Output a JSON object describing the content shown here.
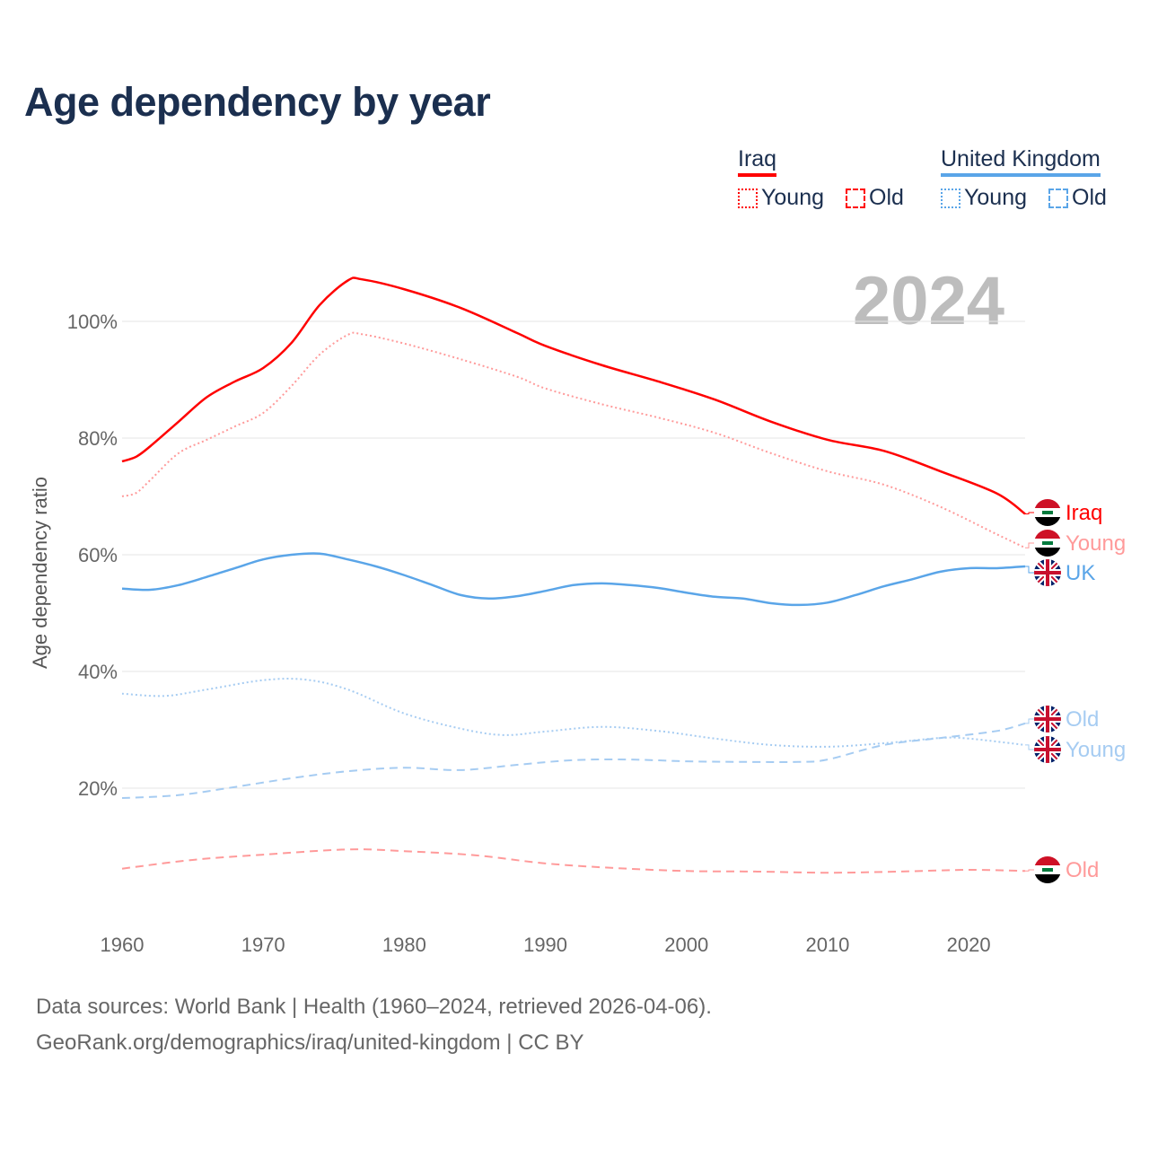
{
  "title": "Age dependency by year",
  "year_label": "2024",
  "legend": {
    "iraq": {
      "name": "Iraq",
      "young": "Young",
      "old": "Old"
    },
    "uk": {
      "name": "United Kingdom",
      "young": "Young",
      "old": "Old"
    }
  },
  "end_labels": {
    "iraq_total": "Iraq",
    "iraq_young": "Young",
    "uk_total": "UK",
    "uk_old": "Old",
    "uk_young": "Young",
    "iraq_old": "Old"
  },
  "source_line1": "Data sources: World Bank | Health (1960–2024, retrieved 2026-04-06).",
  "source_line2": "GeoRank.org/demographics/iraq/united-kingdom | CC BY",
  "colors": {
    "iraq": "#ff0000",
    "iraq_light": "#ff9a9a",
    "uk": "#5aa5e8",
    "uk_light": "#a6ccf2",
    "grid": "#e6e6e6"
  },
  "chart_data": {
    "type": "line",
    "ylabel": "Age dependency ratio",
    "xlabel": "",
    "xlim": [
      1960,
      2024
    ],
    "ylim": [
      0,
      110
    ],
    "x_ticks": [
      1960,
      1970,
      1980,
      1990,
      2000,
      2010,
      2020
    ],
    "x_tick_labels": [
      "1960",
      "1970",
      "1980",
      "1990",
      "2000",
      "2010",
      "2020"
    ],
    "y_ticks": [
      20,
      40,
      60,
      80,
      100
    ],
    "y_tick_labels": [
      "20%",
      "40%",
      "60%",
      "80%",
      "100%"
    ],
    "grid": true,
    "series": [
      {
        "name": "Iraq",
        "key": "iraq_total",
        "style": "solid",
        "color": "#ff0000",
        "x": [
          1960,
          1961,
          1962,
          1964,
          1966,
          1968,
          1970,
          1972,
          1974,
          1976,
          1977,
          1980,
          1984,
          1988,
          1990,
          1994,
          1998,
          2002,
          2006,
          2010,
          2014,
          2018,
          2022,
          2024
        ],
        "values": [
          76,
          76.8,
          78.6,
          82.8,
          87,
          89.7,
          92,
          96.3,
          102.8,
          107,
          107.2,
          105.5,
          102.3,
          98,
          95.8,
          92.5,
          89.7,
          86.6,
          82.8,
          79.7,
          77.8,
          74.3,
          70.5,
          67
        ]
      },
      {
        "name": "Iraq Young",
        "key": "iraq_young",
        "style": "dotted",
        "color": "#ff9a9a",
        "x": [
          1960,
          1961,
          1962,
          1964,
          1966,
          1968,
          1970,
          1972,
          1974,
          1976,
          1977,
          1980,
          1984,
          1988,
          1990,
          1994,
          1998,
          2002,
          2006,
          2010,
          2014,
          2018,
          2022,
          2024
        ],
        "values": [
          70,
          70.6,
          72.8,
          77.4,
          79.7,
          82,
          84.3,
          88.9,
          94.3,
          97.7,
          97.8,
          96.2,
          93.5,
          90.5,
          88.5,
          85.8,
          83.5,
          80.9,
          77.4,
          74.3,
          72,
          68.2,
          63.5,
          61.2
        ]
      },
      {
        "name": "Iraq Old",
        "key": "iraq_old",
        "style": "dashed",
        "color": "#ff9a9a",
        "x": [
          1960,
          1965,
          1970,
          1976,
          1980,
          1985,
          1990,
          1995,
          2000,
          2005,
          2010,
          2015,
          2020,
          2024
        ],
        "values": [
          6.2,
          7.7,
          8.6,
          9.5,
          9.2,
          8.5,
          7.1,
          6.3,
          5.8,
          5.7,
          5.5,
          5.7,
          6,
          5.8
        ]
      },
      {
        "name": "UK",
        "key": "uk_total",
        "style": "solid",
        "color": "#5aa5e8",
        "x": [
          1960,
          1962,
          1964,
          1966,
          1968,
          1970,
          1972,
          1974,
          1976,
          1978,
          1980,
          1982,
          1984,
          1986,
          1988,
          1990,
          1992,
          1994,
          1996,
          1998,
          2000,
          2002,
          2004,
          2006,
          2008,
          2010,
          2012,
          2014,
          2016,
          2018,
          2020,
          2022,
          2024
        ],
        "values": [
          54.2,
          54,
          54.8,
          56.2,
          57.7,
          59.2,
          60,
          60.2,
          59.2,
          58,
          56.5,
          54.8,
          53.1,
          52.5,
          52.9,
          53.8,
          54.8,
          55.1,
          54.8,
          54.3,
          53.5,
          52.8,
          52.5,
          51.7,
          51.4,
          51.8,
          53.1,
          54.6,
          55.8,
          57.1,
          57.7,
          57.7,
          58
        ]
      },
      {
        "name": "UK Young",
        "key": "uk_young",
        "style": "dotted",
        "color": "#a6ccf2",
        "x": [
          1960,
          1963,
          1966,
          1970,
          1973,
          1976,
          1980,
          1984,
          1987,
          1990,
          1994,
          1998,
          2002,
          2006,
          2010,
          2014,
          2018,
          2020,
          2024
        ],
        "values": [
          36.2,
          35.8,
          36.9,
          38.5,
          38.6,
          36.9,
          32.8,
          30.2,
          29.1,
          29.7,
          30.5,
          29.8,
          28.5,
          27.4,
          27.1,
          27.7,
          28.6,
          28.5,
          27.4
        ]
      },
      {
        "name": "UK Old",
        "key": "uk_old",
        "style": "dashed",
        "color": "#a6ccf2",
        "x": [
          1960,
          1964,
          1968,
          1972,
          1976,
          1980,
          1984,
          1988,
          1992,
          1996,
          2000,
          2004,
          2008,
          2010,
          2014,
          2018,
          2022,
          2024
        ],
        "values": [
          18.3,
          18.8,
          20.2,
          21.7,
          22.9,
          23.5,
          23.1,
          24,
          24.8,
          24.9,
          24.6,
          24.5,
          24.5,
          24.9,
          27.4,
          28.6,
          29.8,
          31.1
        ]
      }
    ]
  }
}
